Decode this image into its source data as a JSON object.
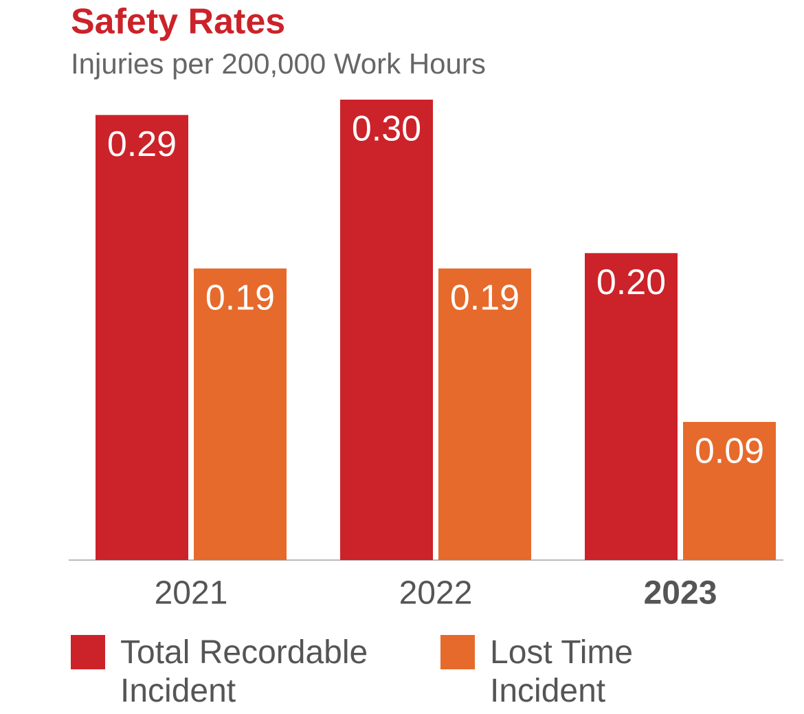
{
  "chart_data": {
    "type": "bar",
    "title": "Safety Rates",
    "subtitle": "Injuries per 200,000 Work Hours",
    "categories": [
      "2021",
      "2022",
      "2023"
    ],
    "series": [
      {
        "name": "Total Recordable Incident",
        "color": "#cc2229",
        "values": [
          0.29,
          0.3,
          0.2
        ],
        "value_labels": [
          "0.29",
          "0.30",
          "0.20"
        ]
      },
      {
        "name": "Lost Time Incident",
        "color": "#e66a2c",
        "values": [
          0.19,
          0.19,
          0.09
        ],
        "value_labels": [
          "0.19",
          "0.19",
          "0.09"
        ]
      }
    ],
    "ylim": [
      0,
      0.3
    ],
    "grid": false
  }
}
